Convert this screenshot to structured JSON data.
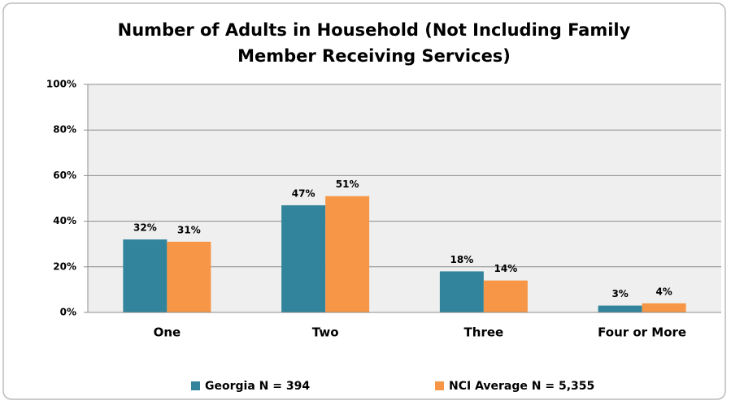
{
  "chart_data": {
    "type": "bar",
    "title": [
      "Number of Adults in Household (Not Including Family",
      "Member Receiving Services)"
    ],
    "categories": [
      "One",
      "Two",
      "Three",
      "Four or More"
    ],
    "series": [
      {
        "name": "Georgia N = 394",
        "color": "#31849b",
        "values": [
          32,
          47,
          18,
          3
        ],
        "value_labels": [
          "32%",
          "47%",
          "18%",
          "3%"
        ]
      },
      {
        "name": "NCI Average N = 5,355",
        "color": "#f79646",
        "values": [
          31,
          51,
          14,
          4
        ],
        "value_labels": [
          "31%",
          "51%",
          "14%",
          "4%"
        ]
      }
    ],
    "ylim": [
      0,
      100
    ],
    "yticks": [
      {
        "value": 0,
        "label": "0%"
      },
      {
        "value": 20,
        "label": "20%"
      },
      {
        "value": 40,
        "label": "40%"
      },
      {
        "value": 60,
        "label": "60%"
      },
      {
        "value": 80,
        "label": "80%"
      },
      {
        "value": 100,
        "label": "100%"
      }
    ],
    "grid": true,
    "legend": "bottom"
  }
}
